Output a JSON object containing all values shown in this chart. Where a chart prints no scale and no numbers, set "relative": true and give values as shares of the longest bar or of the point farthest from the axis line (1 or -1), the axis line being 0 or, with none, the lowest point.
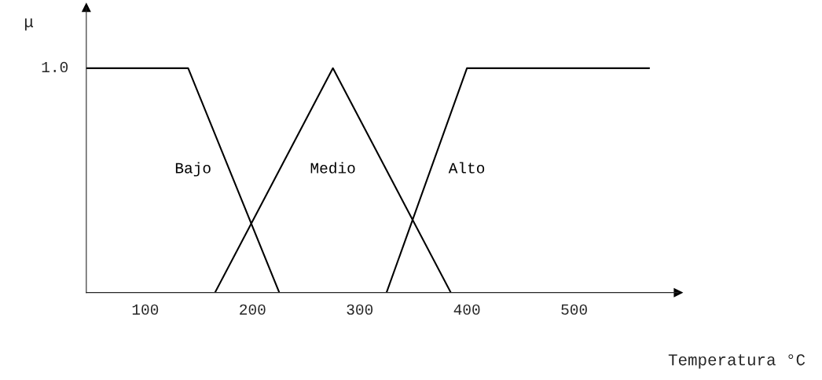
{
  "chart_data": {
    "type": "line",
    "xlabel": "Temperatura °C",
    "ylabel": "μ",
    "series": [
      {
        "name": "Bajo",
        "color": "#000000",
        "x": [
          45,
          140,
          225
        ],
        "values": [
          1,
          1,
          0
        ]
      },
      {
        "name": "Medio",
        "color": "#000000",
        "x": [
          165,
          275,
          385
        ],
        "values": [
          0,
          1,
          0
        ]
      },
      {
        "name": "Alto",
        "color": "#000000",
        "x": [
          325,
          400,
          570
        ],
        "values": [
          0,
          1,
          1
        ]
      }
    ],
    "xlim": [
      45,
      597
    ],
    "xticks": [
      100,
      200,
      300,
      400,
      500
    ],
    "relative": true,
    "annotations": [
      "1.0"
    ],
    "grid": false,
    "legend": false,
    "marker": "none",
    "line_style": "solid"
  }
}
